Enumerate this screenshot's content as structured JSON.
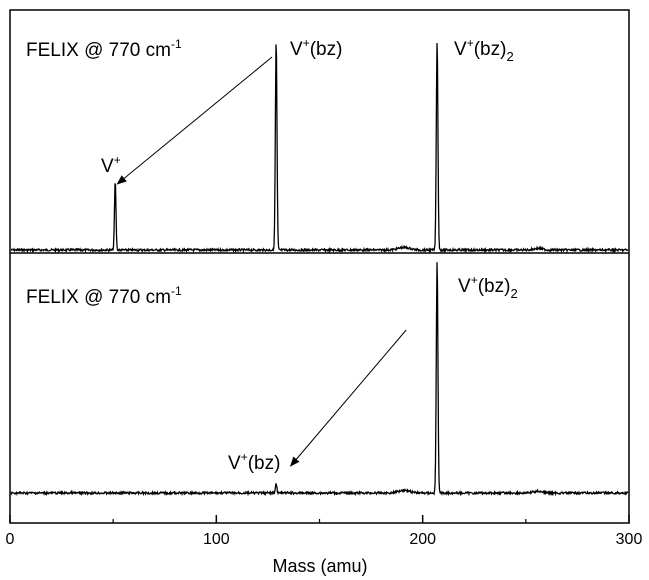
{
  "chart_data": {
    "type": "line",
    "xlabel": "Mass (amu)",
    "xlim": [
      0,
      300
    ],
    "xticks": [
      "0",
      "100",
      "200",
      "300"
    ],
    "panels": [
      {
        "annotation": {
          "text": "FELIX @ 770 cm",
          "sup": "-1"
        },
        "peaks": [
          {
            "mass": 51,
            "height": 0.33,
            "label": "V",
            "label_sup": "+",
            "label_suffix": "",
            "label_sub": ""
          },
          {
            "mass": 129,
            "height": 1.0,
            "label": "V",
            "label_sup": "+",
            "label_suffix": "(bz)",
            "label_sub": ""
          },
          {
            "mass": 207,
            "height": 1.0,
            "label": "V",
            "label_sup": "+",
            "label_suffix": "(bz)",
            "label_sub": "2"
          }
        ],
        "arrow": {
          "from_mass": 127,
          "to_mass": 52
        }
      },
      {
        "annotation": {
          "text": "FELIX @ 770 cm",
          "sup": "-1"
        },
        "peaks": [
          {
            "mass": 129,
            "height": 0.04,
            "label": "V",
            "label_sup": "+",
            "label_suffix": "(bz)",
            "label_sub": ""
          },
          {
            "mass": 207,
            "height": 1.0,
            "label": "V",
            "label_sup": "+",
            "label_suffix": "(bz)",
            "label_sub": "2"
          }
        ],
        "arrow": {
          "from_mass": 192,
          "to_mass": 136
        }
      }
    ]
  }
}
